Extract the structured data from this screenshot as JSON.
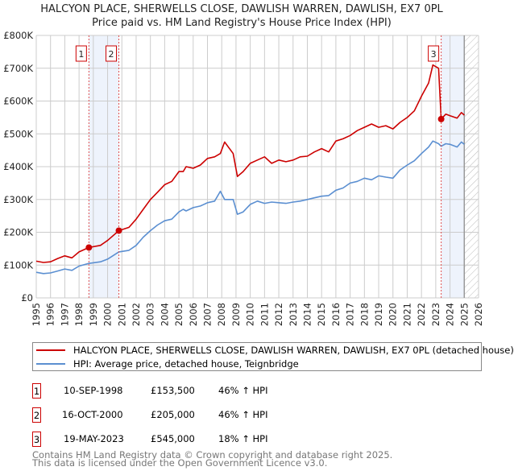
{
  "title": "HALCYON PLACE, SHERWELLS CLOSE, DAWLISH WARREN, DAWLISH, EX7 0PL",
  "subtitle": "Price paid vs. HM Land Registry's House Price Index (HPI)",
  "colors": {
    "property": "#cc0000",
    "hpi": "#5b8fd1",
    "shade": "#eef3fc",
    "grid": "#cccccc"
  },
  "chart_data": {
    "type": "line",
    "title": "Price paid vs. HM Land Registry's House Price Index (HPI)",
    "xlabel": "",
    "ylabel": "",
    "xlim": [
      1995,
      2026
    ],
    "ylim": [
      0,
      800000
    ],
    "grid": true,
    "y_ticks": [
      {
        "v": 0,
        "label": "£0"
      },
      {
        "v": 100000,
        "label": "£100K"
      },
      {
        "v": 200000,
        "label": "£200K"
      },
      {
        "v": 300000,
        "label": "£300K"
      },
      {
        "v": 400000,
        "label": "£400K"
      },
      {
        "v": 500000,
        "label": "£500K"
      },
      {
        "v": 600000,
        "label": "£600K"
      },
      {
        "v": 700000,
        "label": "£700K"
      },
      {
        "v": 800000,
        "label": "£800K"
      }
    ],
    "x_ticks": [
      "1995",
      "1996",
      "1997",
      "1998",
      "1999",
      "2000",
      "2001",
      "2002",
      "2003",
      "2004",
      "2005",
      "2006",
      "2007",
      "2008",
      "2009",
      "2010",
      "2011",
      "2012",
      "2013",
      "2014",
      "2015",
      "2016",
      "2017",
      "2018",
      "2019",
      "2020",
      "2021",
      "2022",
      "2023",
      "2024",
      "2025",
      "2026"
    ],
    "future_from": 2025.0,
    "series": [
      {
        "name": "HALCYON PLACE, SHERWELLS CLOSE, DAWLISH WARREN, DAWLISH, EX7 0PL (detached house)",
        "color": "#cc0000",
        "x": [
          1995,
          1995.5,
          1996,
          1996.5,
          1997,
          1997.5,
          1998,
          1998.69,
          1999.5,
          2000,
          2000.79,
          2001.5,
          2002,
          2002.5,
          2003,
          2003.5,
          2004,
          2004.5,
          2005,
          2005.3,
          2005.5,
          2006,
          2006.5,
          2007,
          2007.5,
          2007.9,
          2008.2,
          2008.8,
          2009.1,
          2009.5,
          2010,
          2010.5,
          2011,
          2011.5,
          2012,
          2012.5,
          2013,
          2013.5,
          2014,
          2014.5,
          2015,
          2015.5,
          2016,
          2016.5,
          2017,
          2017.5,
          2018,
          2018.5,
          2019,
          2019.5,
          2020,
          2020.5,
          2021,
          2021.5,
          2022,
          2022.5,
          2022.8,
          2023.2,
          2023.38,
          2023.7,
          2024,
          2024.5,
          2024.8,
          2025
        ],
        "y": [
          112000,
          108000,
          110000,
          120000,
          128000,
          122000,
          140000,
          153500,
          160000,
          175000,
          205000,
          215000,
          240000,
          270000,
          300000,
          322000,
          345000,
          355000,
          385000,
          385000,
          400000,
          395000,
          405000,
          425000,
          430000,
          440000,
          475000,
          440000,
          370000,
          385000,
          410000,
          420000,
          430000,
          410000,
          420000,
          415000,
          420000,
          430000,
          432000,
          445000,
          455000,
          445000,
          478000,
          485000,
          495000,
          510000,
          520000,
          530000,
          520000,
          525000,
          515000,
          535000,
          550000,
          570000,
          615000,
          655000,
          710000,
          700000,
          545000,
          560000,
          555000,
          548000,
          565000,
          557000
        ]
      },
      {
        "name": "HPI: Average price, detached house, Teignbridge",
        "color": "#5b8fd1",
        "x": [
          1995,
          1995.5,
          1996,
          1996.5,
          1997,
          1997.5,
          1998,
          1998.69,
          1999.5,
          2000,
          2000.79,
          2001.5,
          2002,
          2002.5,
          2003,
          2003.5,
          2004,
          2004.5,
          2005,
          2005.3,
          2005.5,
          2006,
          2006.5,
          2007,
          2007.5,
          2007.9,
          2008.2,
          2008.8,
          2009.1,
          2009.5,
          2010,
          2010.5,
          2011,
          2011.5,
          2012,
          2012.5,
          2013,
          2013.5,
          2014,
          2014.5,
          2015,
          2015.5,
          2016,
          2016.5,
          2017,
          2017.5,
          2018,
          2018.5,
          2019,
          2019.5,
          2020,
          2020.5,
          2021,
          2021.5,
          2022,
          2022.5,
          2022.8,
          2023.2,
          2023.38,
          2023.7,
          2024,
          2024.5,
          2024.8,
          2025
        ],
        "y": [
          78000,
          74000,
          76000,
          82000,
          88000,
          84000,
          97000,
          105000,
          110000,
          118000,
          140000,
          145000,
          160000,
          185000,
          205000,
          222000,
          235000,
          240000,
          262000,
          270000,
          265000,
          275000,
          280000,
          290000,
          295000,
          325000,
          300000,
          300000,
          255000,
          262000,
          285000,
          295000,
          288000,
          292000,
          290000,
          288000,
          292000,
          295000,
          300000,
          305000,
          310000,
          312000,
          328000,
          335000,
          350000,
          355000,
          365000,
          360000,
          372000,
          368000,
          365000,
          390000,
          405000,
          418000,
          440000,
          460000,
          478000,
          470000,
          462000,
          470000,
          468000,
          460000,
          475000,
          468000
        ]
      }
    ],
    "sales": [
      {
        "id": "1",
        "x": 1998.69,
        "price": 153500
      },
      {
        "id": "2",
        "x": 2000.79,
        "price": 205000
      },
      {
        "id": "3",
        "x": 2023.38,
        "price": 545000
      }
    ],
    "legend_placement": "below"
  },
  "legend": {
    "property": "HALCYON PLACE, SHERWELLS CLOSE, DAWLISH WARREN, DAWLISH, EX7 0PL (detached house)",
    "hpi": "HPI: Average price, detached house, Teignbridge"
  },
  "transactions": [
    {
      "id": "1",
      "date": "10-SEP-1998",
      "price": "£153,500",
      "hpi": "46% ↑ HPI"
    },
    {
      "id": "2",
      "date": "16-OCT-2000",
      "price": "£205,000",
      "hpi": "46% ↑ HPI"
    },
    {
      "id": "3",
      "date": "19-MAY-2023",
      "price": "£545,000",
      "hpi": "18% ↑ HPI"
    }
  ],
  "footer": {
    "line1": "Contains HM Land Registry data © Crown copyright and database right 2025.",
    "line2": "This data is licensed under the Open Government Licence v3.0."
  }
}
